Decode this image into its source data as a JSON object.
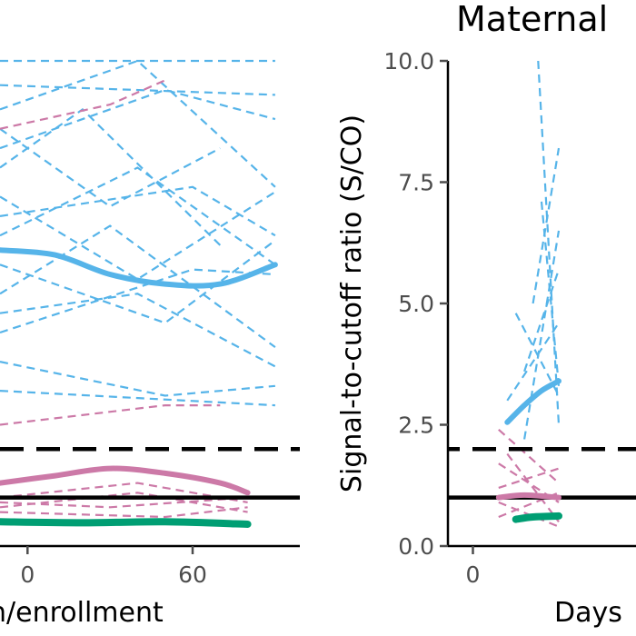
{
  "colors": {
    "blue": "#56B4E9",
    "pink": "#CC79A7",
    "green": "#009E73",
    "black": "#000000",
    "tick": "#4d4d4d"
  },
  "chart_data": [
    {
      "type": "line",
      "panel": "left",
      "title": "",
      "xlabel": "n/enrollment",
      "ylabel": "",
      "xlim": [
        -10,
        95
      ],
      "ylim": [
        0,
        10
      ],
      "x_ticks": [
        0,
        60
      ],
      "x_tick_labels": [
        "0",
        "60"
      ],
      "grid": false,
      "reference_lines": [
        {
          "y": 2.0,
          "style": "dashed",
          "color": "#000000"
        },
        {
          "y": 1.0,
          "style": "solid",
          "color": "#000000"
        }
      ],
      "smooth_series": [
        {
          "group": "blue",
          "x": [
            -10,
            10,
            30,
            50,
            70,
            90
          ],
          "y": [
            6.1,
            6.0,
            5.6,
            5.4,
            5.4,
            5.8
          ]
        },
        {
          "group": "pink",
          "x": [
            -10,
            10,
            30,
            50,
            70,
            80
          ],
          "y": [
            1.3,
            1.45,
            1.6,
            1.5,
            1.3,
            1.1
          ]
        },
        {
          "group": "green",
          "x": [
            -10,
            20,
            50,
            80
          ],
          "y": [
            0.5,
            0.48,
            0.5,
            0.45
          ]
        }
      ],
      "individual_series": [
        {
          "group": "blue",
          "x": [
            -10,
            90
          ],
          "y": [
            10.0,
            10.0
          ]
        },
        {
          "group": "blue",
          "x": [
            -10,
            90
          ],
          "y": [
            9.5,
            9.3
          ]
        },
        {
          "group": "blue",
          "x": [
            -10,
            40,
            90
          ],
          "y": [
            9.0,
            10.0,
            7.4
          ]
        },
        {
          "group": "blue",
          "x": [
            -10,
            50,
            90
          ],
          "y": [
            8.2,
            9.4,
            8.8
          ]
        },
        {
          "group": "blue",
          "x": [
            -10,
            30,
            70
          ],
          "y": [
            8.6,
            7.0,
            8.2
          ]
        },
        {
          "group": "blue",
          "x": [
            -10,
            20,
            70
          ],
          "y": [
            7.8,
            9.0,
            6.2
          ]
        },
        {
          "group": "blue",
          "x": [
            -10,
            40,
            90
          ],
          "y": [
            7.2,
            5.5,
            7.3
          ]
        },
        {
          "group": "blue",
          "x": [
            -10,
            60,
            90
          ],
          "y": [
            6.8,
            7.4,
            6.4
          ]
        },
        {
          "group": "blue",
          "x": [
            -10,
            40,
            90
          ],
          "y": [
            6.4,
            7.8,
            5.8
          ]
        },
        {
          "group": "blue",
          "x": [
            -10,
            50,
            90
          ],
          "y": [
            5.8,
            4.6,
            6.3
          ]
        },
        {
          "group": "blue",
          "x": [
            -10,
            30,
            90
          ],
          "y": [
            5.2,
            6.6,
            4.1
          ]
        },
        {
          "group": "blue",
          "x": [
            -10,
            40,
            90
          ],
          "y": [
            4.8,
            5.2,
            3.7
          ]
        },
        {
          "group": "blue",
          "x": [
            -10,
            60,
            90
          ],
          "y": [
            4.4,
            5.7,
            5.6
          ]
        },
        {
          "group": "blue",
          "x": [
            -10,
            50,
            90
          ],
          "y": [
            3.8,
            3.1,
            3.3
          ]
        },
        {
          "group": "blue",
          "x": [
            -10,
            90
          ],
          "y": [
            3.2,
            2.9
          ]
        },
        {
          "group": "pink",
          "x": [
            -10,
            30,
            50
          ],
          "y": [
            8.6,
            9.1,
            9.6
          ]
        },
        {
          "group": "pink",
          "x": [
            -10,
            50,
            70
          ],
          "y": [
            2.5,
            2.9,
            2.9
          ]
        },
        {
          "group": "pink",
          "x": [
            -10,
            40,
            80
          ],
          "y": [
            1.0,
            1.3,
            0.9
          ]
        },
        {
          "group": "pink",
          "x": [
            -10,
            30,
            80
          ],
          "y": [
            0.9,
            0.8,
            1.0
          ]
        },
        {
          "group": "pink",
          "x": [
            -10,
            40,
            80
          ],
          "y": [
            0.8,
            1.1,
            0.7
          ]
        },
        {
          "group": "pink",
          "x": [
            -10,
            50,
            80
          ],
          "y": [
            0.7,
            0.6,
            0.8
          ]
        }
      ]
    },
    {
      "type": "line",
      "panel": "right",
      "title": "Maternal",
      "xlabel": "Days",
      "ylabel": "Signal-to-cutoff ratio (S/CO)",
      "xlim": [
        -5,
        95
      ],
      "ylim": [
        0,
        10
      ],
      "y_ticks": [
        0.0,
        2.5,
        5.0,
        7.5,
        10.0
      ],
      "y_tick_labels": [
        "0.0",
        "2.5",
        "5.0",
        "7.5",
        "10.0"
      ],
      "x_ticks": [
        0
      ],
      "x_tick_labels": [
        "0"
      ],
      "grid": false,
      "reference_lines": [
        {
          "y": 2.0,
          "style": "dashed",
          "color": "#000000"
        },
        {
          "y": 1.0,
          "style": "solid",
          "color": "#000000"
        }
      ],
      "smooth_series": [
        {
          "group": "blue",
          "x": [
            20,
            30,
            40,
            50
          ],
          "y": [
            2.55,
            2.9,
            3.2,
            3.4
          ]
        },
        {
          "group": "pink",
          "x": [
            15,
            30,
            50
          ],
          "y": [
            1.0,
            1.05,
            1.0
          ]
        },
        {
          "group": "green",
          "x": [
            25,
            35,
            50
          ],
          "y": [
            0.55,
            0.6,
            0.62
          ]
        }
      ],
      "individual_series": [
        {
          "group": "blue",
          "x": [
            38,
            50
          ],
          "y": [
            10.0,
            2.5
          ]
        },
        {
          "group": "blue",
          "x": [
            35,
            50
          ],
          "y": [
            5.0,
            8.2
          ]
        },
        {
          "group": "blue",
          "x": [
            30,
            50
          ],
          "y": [
            2.2,
            6.5
          ]
        },
        {
          "group": "blue",
          "x": [
            25,
            50
          ],
          "y": [
            4.8,
            3.1
          ]
        },
        {
          "group": "blue",
          "x": [
            30,
            50
          ],
          "y": [
            3.6,
            5.7
          ]
        },
        {
          "group": "blue",
          "x": [
            20,
            50
          ],
          "y": [
            3.0,
            4.6
          ]
        },
        {
          "group": "blue",
          "x": [
            40,
            50
          ],
          "y": [
            7.1,
            3.3
          ]
        },
        {
          "group": "pink",
          "x": [
            15,
            50
          ],
          "y": [
            2.4,
            1.3
          ]
        },
        {
          "group": "pink",
          "x": [
            15,
            50
          ],
          "y": [
            1.7,
            0.9
          ]
        },
        {
          "group": "pink",
          "x": [
            15,
            50
          ],
          "y": [
            1.2,
            1.6
          ]
        },
        {
          "group": "pink",
          "x": [
            15,
            50
          ],
          "y": [
            0.6,
            1.1
          ]
        },
        {
          "group": "pink",
          "x": [
            20,
            50
          ],
          "y": [
            1.9,
            0.5
          ]
        },
        {
          "group": "pink",
          "x": [
            15,
            50
          ],
          "y": [
            0.9,
            0.4
          ]
        }
      ]
    }
  ]
}
